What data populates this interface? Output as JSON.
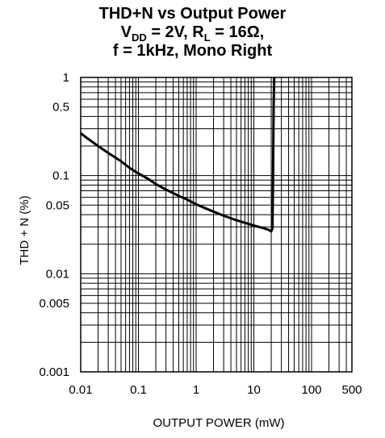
{
  "chart_data": {
    "type": "line",
    "title": {
      "line1": "THD+N vs Output Power",
      "line2": {
        "v": "V",
        "v_sub": "DD",
        "mid": " = 2V, R",
        "r_sub": "L",
        "end": " = 16Ω,"
      },
      "line3": "f = 1kHz, Mono Right"
    },
    "xlabel": "OUTPUT POWER (mW)",
    "ylabel": "THD + N (%)",
    "x_scale": "log",
    "y_scale": "log",
    "xlim": [
      0.01,
      500
    ],
    "ylim": [
      0.001,
      1
    ],
    "x_ticks": [
      {
        "value": 0.01,
        "label": "0.01"
      },
      {
        "value": 0.1,
        "label": "0.1"
      },
      {
        "value": 1,
        "label": "1"
      },
      {
        "value": 10,
        "label": "10"
      },
      {
        "value": 100,
        "label": "100"
      },
      {
        "value": 500,
        "label": "500"
      }
    ],
    "y_ticks": [
      {
        "value": 1,
        "label": "1"
      },
      {
        "value": 0.5,
        "label": "0.5"
      },
      {
        "value": 0.1,
        "label": "0.1"
      },
      {
        "value": 0.05,
        "label": "0.05"
      },
      {
        "value": 0.01,
        "label": "0.01"
      },
      {
        "value": 0.005,
        "label": "0.005"
      },
      {
        "value": 0.001,
        "label": "0.001"
      }
    ],
    "grid": true,
    "series": [
      {
        "color": "#000000",
        "x": [
          0.01,
          0.013,
          0.02,
          0.03,
          0.05,
          0.07,
          0.1,
          0.15,
          0.2,
          0.3,
          0.5,
          0.7,
          1,
          1.5,
          2,
          3,
          5,
          7,
          10,
          15,
          18,
          20,
          21,
          21.5,
          22,
          22.5
        ],
        "y": [
          0.27,
          0.24,
          0.2,
          0.17,
          0.14,
          0.12,
          0.105,
          0.092,
          0.082,
          0.072,
          0.062,
          0.057,
          0.051,
          0.046,
          0.043,
          0.039,
          0.035,
          0.033,
          0.031,
          0.029,
          0.028,
          0.027,
          0.029,
          0.1,
          0.5,
          1
        ]
      }
    ]
  }
}
